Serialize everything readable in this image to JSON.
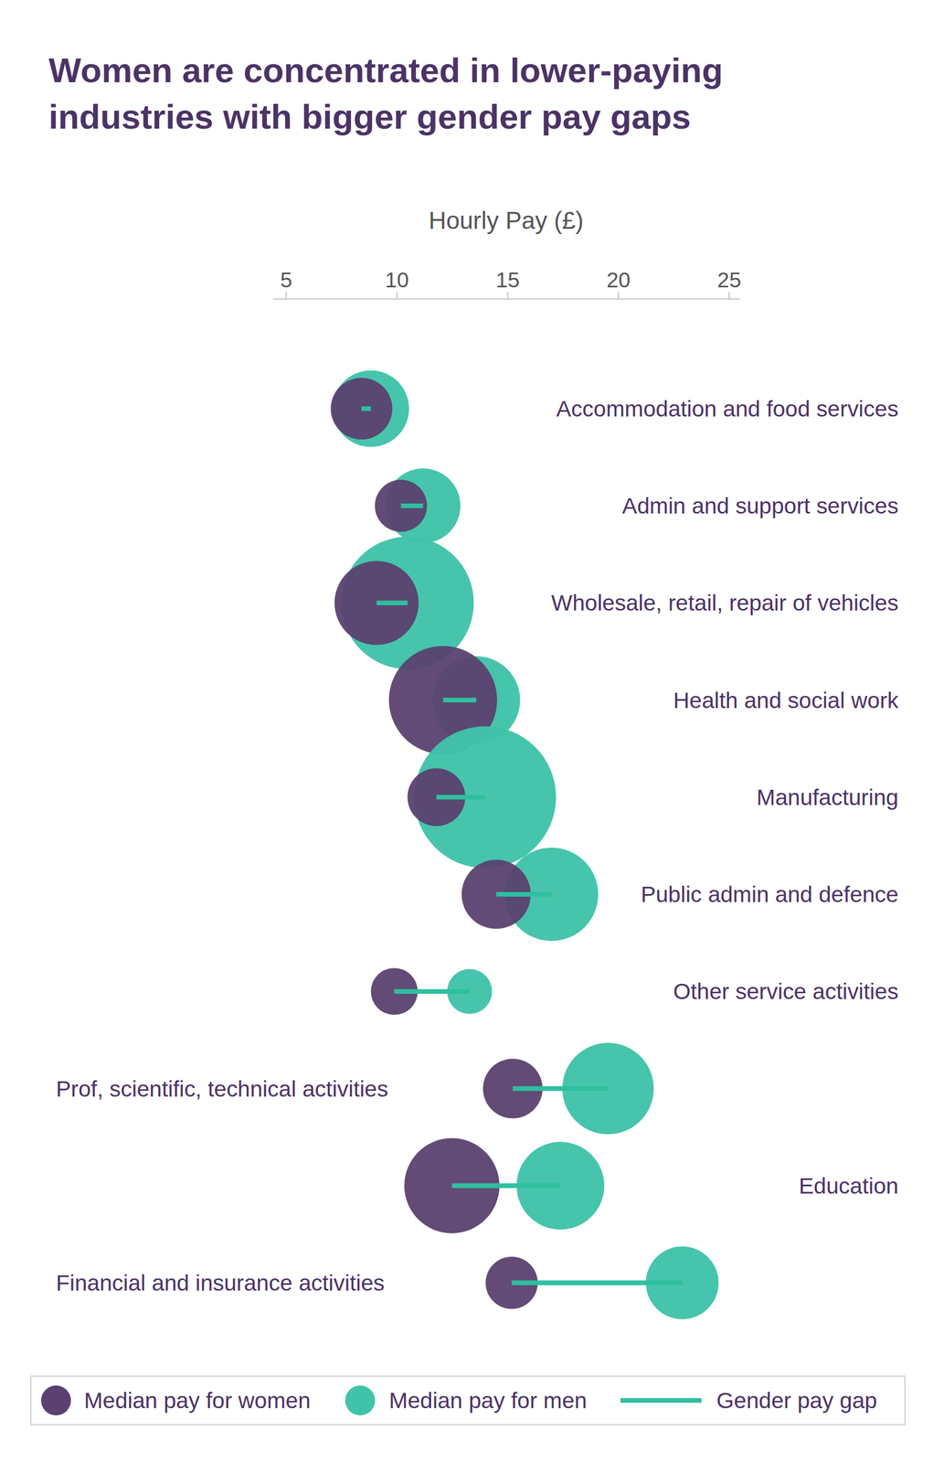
{
  "chart_data": {
    "type": "dumbbell",
    "title": "Women are concentrated in lower-paying industries with bigger gender pay gaps",
    "x_label": "Hourly Pay (£)",
    "xlim": [
      4.4,
      25.5
    ],
    "xticks": [
      5,
      10,
      15,
      20,
      25
    ],
    "categories": [
      "Accommodation and food services",
      "Admin and support services",
      "Wholesale, retail, repair of vehicles",
      "Health and social work",
      "Manufacturing",
      "Public admin and defence",
      "Other service activities",
      "Prof, scientific, technical activities",
      "Education",
      "Financial and insurance activities"
    ],
    "series": [
      {
        "name": "Median pay for women",
        "color": "#5a416f",
        "values": [
          8.42,
          10.2,
          9.1,
          12.1,
          11.8,
          14.5,
          9.9,
          15.25,
          12.5,
          15.2
        ],
        "sizes": [
          10.9,
          7.8,
          20.3,
          33.6,
          9.6,
          13.7,
          6.3,
          10.2,
          26.0,
          7.8
        ]
      },
      {
        "name": "Median pay for men",
        "color": "#40c3a9",
        "values": [
          8.84,
          11.2,
          10.5,
          13.6,
          14.0,
          17.0,
          13.3,
          19.55,
          17.4,
          22.9
        ],
        "sizes": [
          16.8,
          16.0,
          50.4,
          22.1,
          57.8,
          25.0,
          5.8,
          24.0,
          22.1,
          15.2
        ]
      }
    ],
    "gap_line": {
      "name": "Gender pay gap",
      "color": "#2fbf9f"
    },
    "legend": "bottom"
  }
}
